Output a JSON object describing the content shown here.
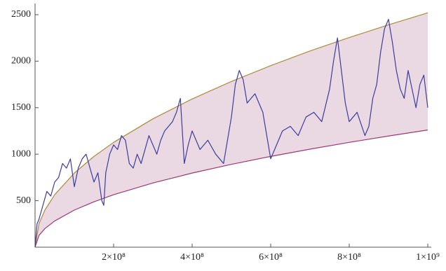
{
  "chart_data": {
    "type": "line",
    "x": [
      0,
      5000000.0,
      10000000.0,
      20000000.0,
      30000000.0,
      40000000.0,
      50000000.0,
      60000000.0,
      70000000.0,
      80000000.0,
      90000000.0,
      100000000.0,
      110000000.0,
      120000000.0,
      130000000.0,
      140000000.0,
      150000000.0,
      160000000.0,
      170000000.0,
      175000000.0,
      180000000.0,
      190000000.0,
      200000000.0,
      210000000.0,
      220000000.0,
      230000000.0,
      240000000.0,
      250000000.0,
      260000000.0,
      270000000.0,
      280000000.0,
      290000000.0,
      300000000.0,
      310000000.0,
      320000000.0,
      330000000.0,
      340000000.0,
      350000000.0,
      360000000.0,
      370000000.0,
      380000000.0,
      390000000.0,
      400000000.0,
      420000000.0,
      440000000.0,
      460000000.0,
      480000000.0,
      500000000.0,
      510000000.0,
      520000000.0,
      530000000.0,
      540000000.0,
      560000000.0,
      580000000.0,
      590000000.0,
      600000000.0,
      610000000.0,
      630000000.0,
      650000000.0,
      670000000.0,
      690000000.0,
      710000000.0,
      730000000.0,
      750000000.0,
      760000000.0,
      770000000.0,
      780000000.0,
      790000000.0,
      800000000.0,
      820000000.0,
      840000000.0,
      850000000.0,
      860000000.0,
      870000000.0,
      880000000.0,
      890000000.0,
      900000000.0,
      910000000.0,
      920000000.0,
      930000000.0,
      940000000.0,
      950000000.0,
      960000000.0,
      970000000.0,
      980000000.0,
      990000000.0,
      1000000000.0
    ],
    "series": [
      {
        "color": "#3d3d9c",
        "values": [
          0,
          250,
          300,
          450,
          600,
          550,
          700,
          750,
          900,
          850,
          950,
          650,
          850,
          950,
          1000,
          850,
          700,
          800,
          500,
          450,
          800,
          1000,
          1100,
          1050,
          1200,
          1150,
          900,
          850,
          1000,
          900,
          1050,
          1200,
          1100,
          1000,
          1150,
          1250,
          1300,
          1350,
          1450,
          1600,
          900,
          1100,
          1250,
          1050,
          1150,
          1000,
          900,
          1400,
          1750,
          1900,
          1800,
          1550,
          1650,
          1450,
          1200,
          950,
          1050,
          1250,
          1300,
          1200,
          1400,
          1450,
          1350,
          1700,
          2000,
          2250,
          1900,
          1550,
          1350,
          1450,
          1200,
          1300,
          1600,
          1750,
          2100,
          2350,
          2450,
          2200,
          1900,
          1700,
          1600,
          1900,
          1700,
          1500,
          1750,
          1850,
          1500
        ]
      }
    ],
    "bounds": {
      "x": [
        0,
        10000000.0,
        25000000.0,
        50000000.0,
        100000000.0,
        150000000.0,
        200000000.0,
        300000000.0,
        400000000.0,
        500000000.0,
        600000000.0,
        700000000.0,
        800000000.0,
        900000000.0,
        1000000000.0
      ],
      "series": [
        {
          "color": "#b08a3a",
          "values": [
            0,
            252,
            399,
            564,
            797,
            976,
            1127,
            1380,
            1594,
            1782,
            1952,
            2109,
            2254,
            2391,
            2520
          ]
        },
        {
          "color": "#9a3a7a",
          "values": [
            0,
            126,
            200,
            282,
            399,
            488,
            564,
            690,
            797,
            891,
            976,
            1054,
            1127,
            1195,
            1260
          ]
        }
      ],
      "fill_color": "#ead8e3"
    },
    "xlim": [
      0,
      1000000000.0
    ],
    "ylim": [
      0,
      2620
    ],
    "xticks": [
      {
        "value": 200000000.0,
        "label": "2×10⁸"
      },
      {
        "value": 400000000.0,
        "label": "4×10⁸"
      },
      {
        "value": 600000000.0,
        "label": "6×10⁸"
      },
      {
        "value": 800000000.0,
        "label": "8×10⁸"
      },
      {
        "value": 1000000000.0,
        "label": "1×10⁹"
      }
    ],
    "yticks": [
      500,
      1000,
      1500,
      2000,
      2500
    ],
    "grid": false
  }
}
